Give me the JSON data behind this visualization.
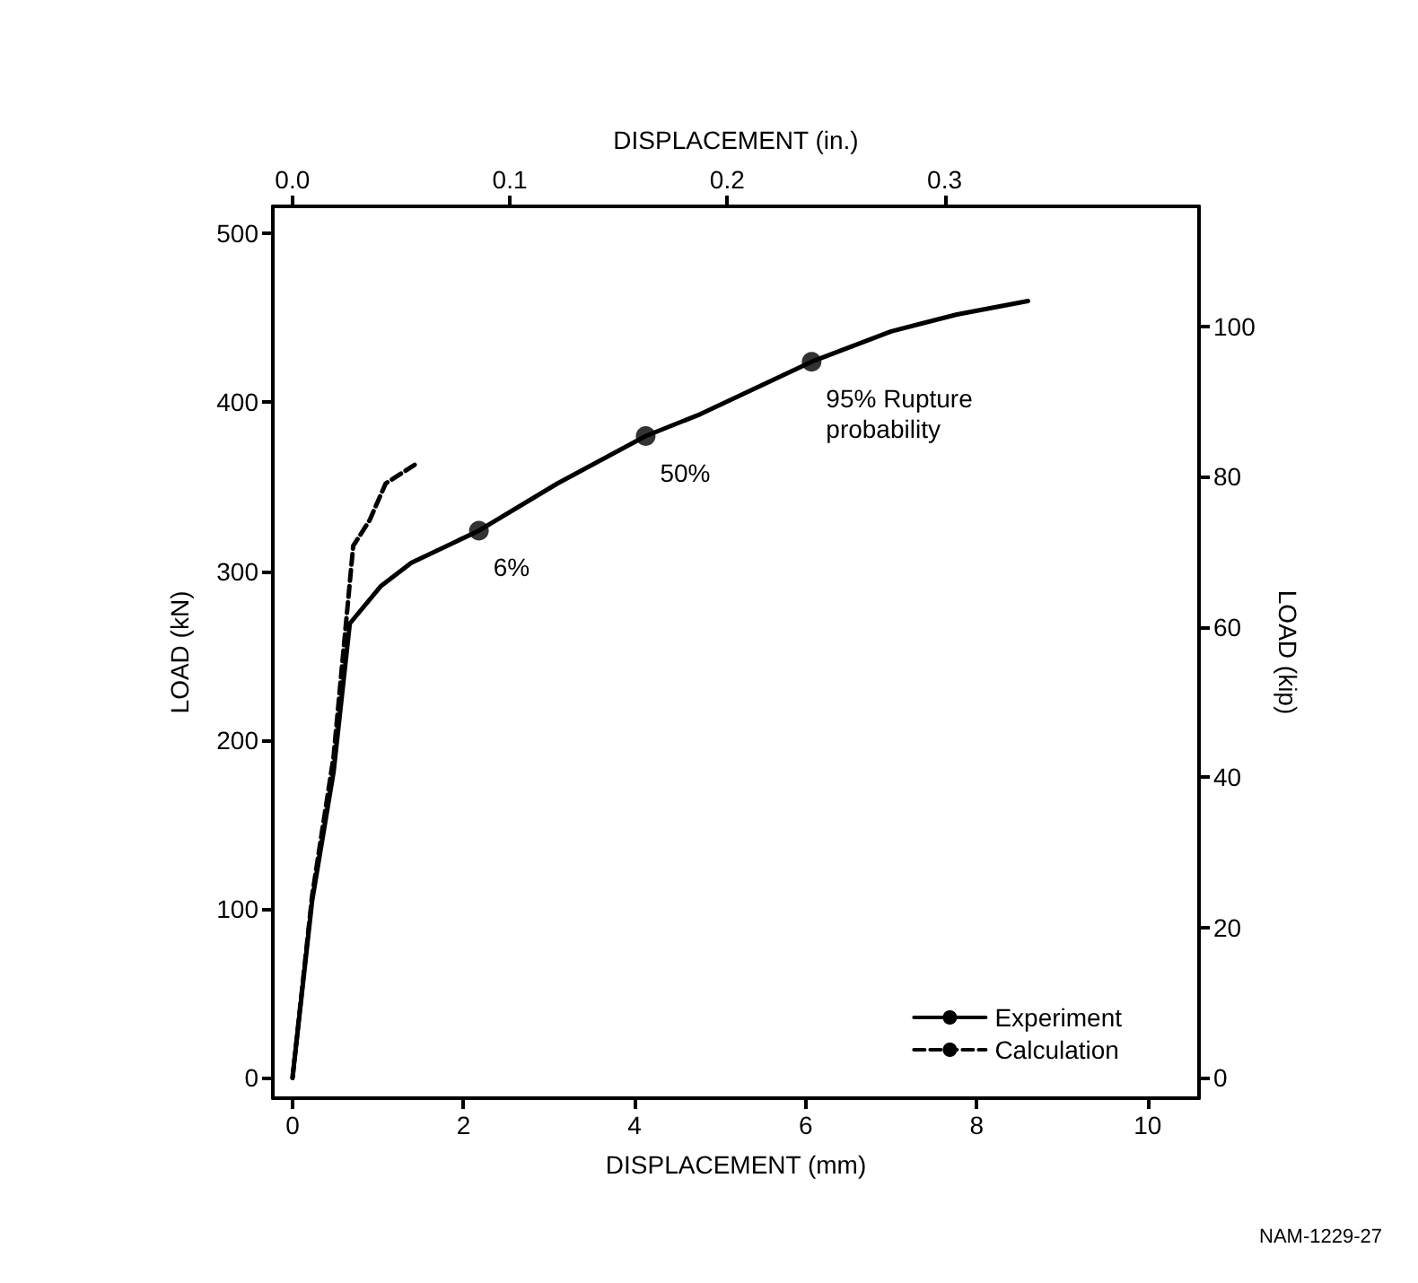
{
  "chart_data": {
    "type": "line",
    "xlabel": "DISPLACEMENT (mm)",
    "x2label": "DISPLACEMENT (in.)",
    "ylabel": "LOAD (kN)",
    "y2label": "LOAD (kip)",
    "xlim": [
      -0.23,
      10.6
    ],
    "xticks": [
      0,
      2,
      4,
      6,
      8,
      10
    ],
    "x2lim": [
      -0.009,
      0.417
    ],
    "x2ticks": [
      {
        "value": 0,
        "label": "0.0"
      },
      {
        "value": 0.1,
        "label": "0.1"
      },
      {
        "value": 0.2,
        "label": "0.2"
      },
      {
        "value": 0.3,
        "label": "0.3"
      }
    ],
    "ylim": [
      -12,
      516
    ],
    "yticks": [
      0,
      100,
      200,
      300,
      400,
      500
    ],
    "y2lim": [
      -2.7,
      116
    ],
    "y2ticks": [
      0,
      20,
      40,
      60,
      80,
      100
    ],
    "series": [
      {
        "name": "Experiment",
        "color": "#000000",
        "line_style": "solid",
        "x": [
          0,
          0.23,
          0.48,
          0.67,
          1.03,
          1.39,
          2.18,
          3.1,
          4.13,
          4.77,
          6.07,
          7.0,
          7.77,
          8.6
        ],
        "values": [
          0,
          105,
          181,
          269,
          291,
          305,
          324,
          352,
          380,
          393,
          424,
          442,
          452,
          460
        ]
      },
      {
        "name": "Calculation",
        "color": "#000000",
        "line_style": "dashed",
        "x": [
          0,
          0.23,
          0.48,
          0.71,
          0.9,
          1.09,
          1.43
        ],
        "values": [
          0,
          108,
          190,
          315,
          330,
          352,
          363
        ]
      },
      {
        "type": "scatter",
        "color": "#000000",
        "marker": "circle",
        "x": [
          2.18,
          4.13,
          6.07
        ],
        "values": [
          324,
          380,
          424
        ]
      }
    ],
    "annotations": [
      {
        "text": "6%",
        "x": 2.18,
        "y": 324
      },
      {
        "text": "50%",
        "x": 4.13,
        "y": 380
      },
      {
        "text": "95% Rupture\nprobability",
        "x": 6.07,
        "y": 424
      },
      "NAM-1229-27"
    ],
    "legend": "bottom right",
    "grid": false,
    "marker": "none"
  }
}
